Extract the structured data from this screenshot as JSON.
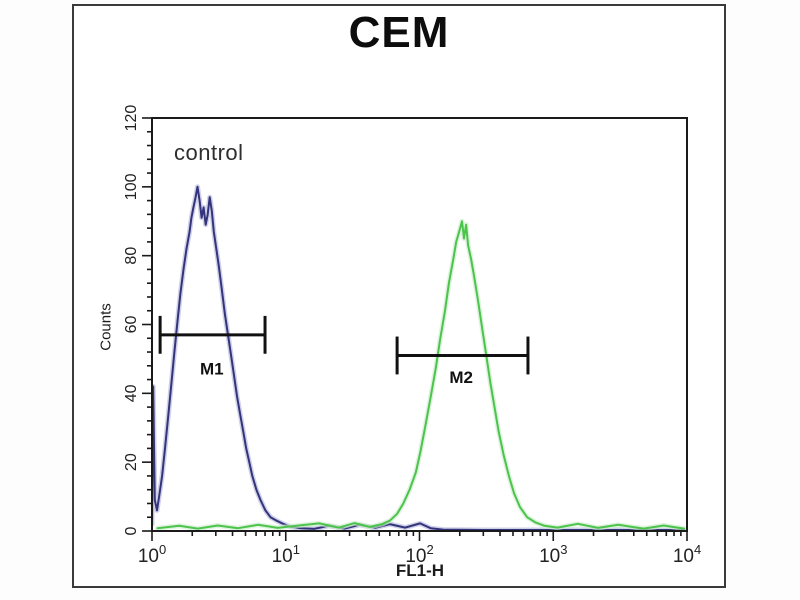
{
  "chart_data": {
    "type": "line",
    "subtype": "flow-cytometry-histogram",
    "title": "CEM",
    "annotation": "control",
    "xlabel": "FL1-H",
    "ylabel": "Counts",
    "xscale": "log",
    "xlim": [
      1,
      10000
    ],
    "ylim": [
      0,
      120
    ],
    "yticks": [
      0,
      20,
      40,
      60,
      80,
      100,
      120
    ],
    "ytick_minor_step": 4,
    "xtick_exponents": [
      0,
      1,
      2,
      3,
      4
    ],
    "grid": false,
    "legend": "none",
    "series": [
      {
        "id": "blue-histogram",
        "color": "#34347c",
        "glow": "#b7b7dc",
        "points": [
          [
            1.0,
            2
          ],
          [
            1.02,
            42
          ],
          [
            1.05,
            9
          ],
          [
            1.09,
            6
          ],
          [
            1.13,
            10
          ],
          [
            1.19,
            16
          ],
          [
            1.25,
            24
          ],
          [
            1.32,
            33
          ],
          [
            1.39,
            42
          ],
          [
            1.47,
            52
          ],
          [
            1.55,
            61
          ],
          [
            1.63,
            69
          ],
          [
            1.72,
            76
          ],
          [
            1.81,
            82
          ],
          [
            1.91,
            87
          ],
          [
            1.97,
            91
          ],
          [
            2.04,
            94
          ],
          [
            2.12,
            97
          ],
          [
            2.19,
            100
          ],
          [
            2.27,
            96
          ],
          [
            2.35,
            91
          ],
          [
            2.43,
            94
          ],
          [
            2.52,
            89
          ],
          [
            2.61,
            92
          ],
          [
            2.7,
            97
          ],
          [
            2.8,
            93
          ],
          [
            2.9,
            87
          ],
          [
            3.0,
            83
          ],
          [
            3.16,
            77
          ],
          [
            3.33,
            70
          ],
          [
            3.51,
            63
          ],
          [
            3.7,
            57
          ],
          [
            3.9,
            51
          ],
          [
            4.11,
            45
          ],
          [
            4.33,
            39
          ],
          [
            4.56,
            34
          ],
          [
            4.81,
            29
          ],
          [
            5.06,
            24
          ],
          [
            5.34,
            20
          ],
          [
            5.62,
            16
          ],
          [
            6.03,
            12
          ],
          [
            6.47,
            9
          ],
          [
            7.05,
            6
          ],
          [
            7.69,
            4
          ],
          [
            8.55,
            3
          ],
          [
            9.66,
            2
          ],
          [
            10.9,
            1.2
          ],
          [
            13,
            0.8
          ],
          [
            16.3,
            0.6
          ],
          [
            21,
            1.5
          ],
          [
            27.5,
            0.7
          ],
          [
            35.7,
            1.8
          ],
          [
            46.4,
            0.9
          ],
          [
            60,
            2
          ],
          [
            78,
            1
          ],
          [
            101,
            2.2
          ],
          [
            121,
            0.8
          ],
          [
            150,
            0.4
          ],
          [
            300,
            0.3
          ],
          [
            1000,
            0.3
          ],
          [
            5000,
            0.3
          ],
          [
            9500,
            0.3
          ]
        ]
      },
      {
        "id": "green-histogram",
        "color": "#4cc44c",
        "glow": "#cdeccd",
        "points": [
          [
            1.1,
            0.8
          ],
          [
            1.6,
            1.5
          ],
          [
            2.2,
            0.7
          ],
          [
            3.1,
            1.6
          ],
          [
            4.4,
            0.8
          ],
          [
            6.2,
            1.8
          ],
          [
            8.7,
            0.9
          ],
          [
            12.5,
            1.6
          ],
          [
            17.8,
            2.2
          ],
          [
            25,
            1
          ],
          [
            32.7,
            2.3
          ],
          [
            42.5,
            1.2
          ],
          [
            52.5,
            2
          ],
          [
            60,
            3
          ],
          [
            68,
            5
          ],
          [
            75.7,
            8
          ],
          [
            84.3,
            12
          ],
          [
            93.8,
            17
          ],
          [
            101.5,
            23
          ],
          [
            110,
            30
          ],
          [
            120,
            38
          ],
          [
            132,
            47
          ],
          [
            143,
            56
          ],
          [
            155,
            64
          ],
          [
            166,
            72
          ],
          [
            179,
            79
          ],
          [
            188,
            84
          ],
          [
            198,
            87
          ],
          [
            208,
            90
          ],
          [
            215,
            85
          ],
          [
            223,
            89
          ],
          [
            231,
            83
          ],
          [
            243,
            79
          ],
          [
            256,
            74
          ],
          [
            274,
            67
          ],
          [
            294,
            59
          ],
          [
            316,
            51
          ],
          [
            339,
            43
          ],
          [
            364,
            36
          ],
          [
            390,
            29
          ],
          [
            426,
            22
          ],
          [
            466,
            16
          ],
          [
            509,
            11
          ],
          [
            563,
            7
          ],
          [
            638,
            4
          ],
          [
            735,
            2.5
          ],
          [
            860,
            1.5
          ],
          [
            1078,
            1
          ],
          [
            1526,
            2.1
          ],
          [
            2160,
            0.9
          ],
          [
            3060,
            1.8
          ],
          [
            4730,
            0.7
          ],
          [
            6700,
            1.6
          ],
          [
            9500,
            0.7
          ]
        ]
      }
    ],
    "markers": [
      {
        "label": "M1",
        "x_from": 1.15,
        "x_to": 7.0,
        "y": 57,
        "cap_half": 5.5,
        "label_x": 2.8,
        "label_y": 45.5
      },
      {
        "label": "M2",
        "x_from": 68,
        "x_to": 647,
        "y": 51,
        "cap_half": 5.5,
        "label_x": 205,
        "label_y": 43
      }
    ],
    "colors": {
      "axis": "#1a1a1a",
      "tick_text": "#222222",
      "marker": "#111111",
      "title_text": "#0d0d0d"
    }
  }
}
